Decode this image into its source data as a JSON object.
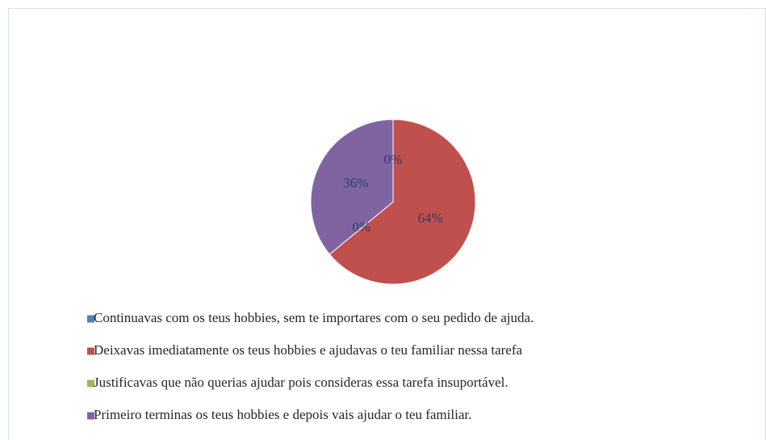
{
  "chart_data": {
    "type": "pie",
    "categories": [
      "Continuavas com os teus hobbies, sem te importares com o seu pedido de ajuda.",
      "Deixavas imediatamente os teus hobbies e ajudavas o teu familiar nessa tarefa",
      "Justificavas que não querias ajudar pois consideras essa tarefa insuportável.",
      "Primeiro terminas os teus hobbies e depois vais ajudar o teu familiar."
    ],
    "values": [
      0,
      64,
      0,
      36
    ],
    "value_labels": [
      "0%",
      "64%",
      "0%",
      "36%"
    ],
    "colors": [
      "#4f81bd",
      "#c0504d",
      "#9bbb59",
      "#8064a2"
    ]
  }
}
